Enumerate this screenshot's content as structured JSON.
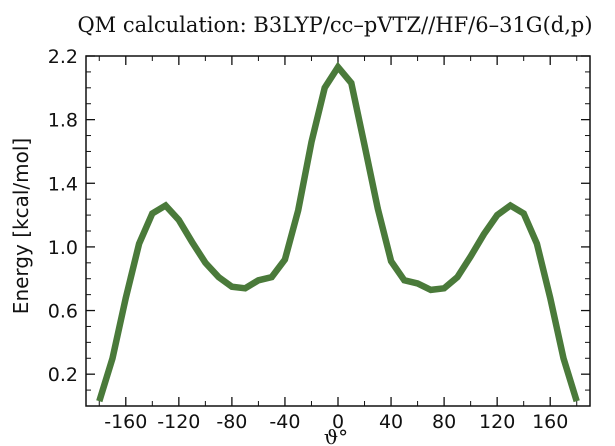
{
  "chart_data": {
    "type": "line",
    "title": "QM calculation: B3LYP/cc–pVTZ//HF/6–31G(d,p)",
    "xlabel": "ϑ°",
    "ylabel": "Energy [kcal/mol]",
    "xlim": [
      -190,
      190
    ],
    "ylim": [
      0.0,
      2.2
    ],
    "xticks": [
      -160,
      -120,
      -80,
      -40,
      0,
      40,
      80,
      120,
      160
    ],
    "xtick_labels": [
      "-160",
      "-120",
      "-80",
      "-40",
      "0",
      "40",
      "80",
      "120",
      "160"
    ],
    "yticks": [
      0.2,
      0.6,
      1.0,
      1.4,
      1.8,
      2.2
    ],
    "ytick_labels": [
      "0.2",
      "0.6",
      "1.0",
      "1.4",
      "1.8",
      "2.2"
    ],
    "grid": false,
    "line_color": "#4a7a3a",
    "series": [
      {
        "x": [
          -180,
          -170,
          -160,
          -150,
          -140,
          -130,
          -120,
          -110,
          -100,
          -90,
          -80,
          -70,
          -60,
          -50,
          -40,
          -30,
          -20,
          -10,
          0,
          10,
          20,
          30,
          40,
          50,
          60,
          70,
          80,
          90,
          100,
          110,
          120,
          130,
          140,
          150,
          160,
          170,
          180
        ],
        "values": [
          0.03,
          0.3,
          0.68,
          1.02,
          1.21,
          1.26,
          1.17,
          1.03,
          0.9,
          0.81,
          0.75,
          0.74,
          0.79,
          0.81,
          0.92,
          1.23,
          1.66,
          2.0,
          2.13,
          2.03,
          1.64,
          1.24,
          0.91,
          0.79,
          0.77,
          0.73,
          0.74,
          0.81,
          0.94,
          1.08,
          1.2,
          1.26,
          1.21,
          1.02,
          0.68,
          0.3,
          0.03
        ]
      }
    ]
  }
}
